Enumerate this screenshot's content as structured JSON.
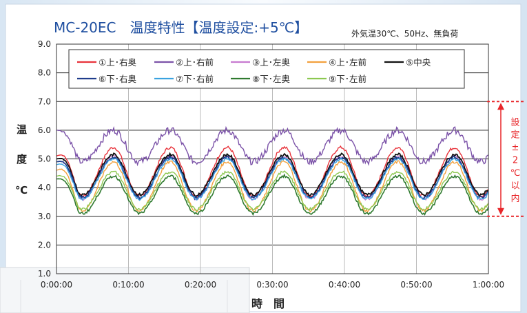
{
  "chart_data": {
    "type": "line",
    "title": "MC-20EC　温度特性【温度設定:+5℃】",
    "subtitle": "外気温30℃、50Hz、無負荷",
    "xlabel": "時　間",
    "ylabel": [
      "温",
      "度",
      "℃"
    ],
    "xlim": [
      "0:00:00",
      "1:00:00"
    ],
    "ylim": [
      1.0,
      9.0
    ],
    "xticks": [
      "0:00:00",
      "0:10:00",
      "0:20:00",
      "0:30:00",
      "0:40:00",
      "0:50:00",
      "1:00:00"
    ],
    "yticks": [
      "1.0",
      "2.0",
      "3.0",
      "4.0",
      "5.0",
      "6.0",
      "7.0",
      "8.0",
      "9.0"
    ],
    "grid": true,
    "legend_position": "top",
    "band": {
      "label": "設定±2℃以内",
      "range": [
        3.0,
        7.0
      ],
      "color": "#e8262a"
    },
    "series": [
      {
        "name": "①上･右奥",
        "color": "#e8323a",
        "width": 1.4,
        "base": 4.55,
        "amp": 0.85,
        "noise": 0.05,
        "start": 5.1
      },
      {
        "name": "②上･右前",
        "color": "#7b52a8",
        "width": 1.4,
        "base": 5.45,
        "amp": 0.55,
        "noise": 0.12,
        "start": 6.0
      },
      {
        "name": "③上･左奥",
        "color": "#c77ad0",
        "width": 1.2,
        "base": 4.35,
        "amp": 0.75,
        "noise": 0.05,
        "start": 4.9
      },
      {
        "name": "④上･左前",
        "color": "#f2a03d",
        "width": 1.4,
        "base": 4.05,
        "amp": 0.85,
        "noise": 0.05,
        "start": 4.6
      },
      {
        "name": "⑤中央",
        "color": "#111111",
        "width": 1.8,
        "base": 4.45,
        "amp": 0.7,
        "noise": 0.05,
        "start": 5.0
      },
      {
        "name": "⑥下･右奥",
        "color": "#1f3d8c",
        "width": 1.8,
        "base": 4.35,
        "amp": 0.7,
        "noise": 0.05,
        "start": 4.9
      },
      {
        "name": "⑦下･右前",
        "color": "#3aa2e0",
        "width": 1.4,
        "base": 4.3,
        "amp": 0.7,
        "noise": 0.05,
        "start": 4.8
      },
      {
        "name": "⑧下･左奥",
        "color": "#2f7a2f",
        "width": 1.6,
        "base": 3.75,
        "amp": 0.65,
        "noise": 0.05,
        "start": 4.3
      },
      {
        "name": "⑨下･左前",
        "color": "#8cc850",
        "width": 1.4,
        "base": 3.9,
        "amp": 0.65,
        "noise": 0.05,
        "start": 4.4
      }
    ]
  }
}
